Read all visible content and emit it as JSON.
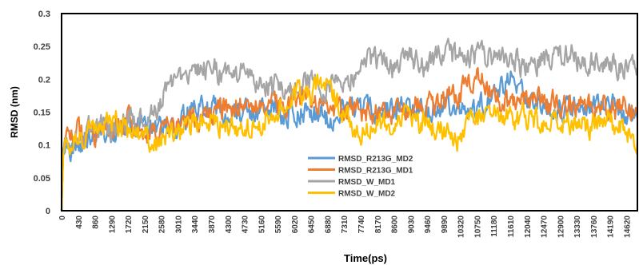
{
  "chart_data": {
    "type": "line",
    "xlabel": "Time(ps)",
    "ylabel": "RMSD (nm)",
    "ylim": [
      0,
      0.3
    ],
    "yticks": [
      "0",
      "0.05",
      "0.1",
      "0.15",
      "0.2",
      "0.25",
      "0.3"
    ],
    "xticks": [
      "0",
      "430",
      "860",
      "1290",
      "1720",
      "2150",
      "2580",
      "3010",
      "3440",
      "3870",
      "4300",
      "4730",
      "5160",
      "5590",
      "6020",
      "6450",
      "6880",
      "7310",
      "7740",
      "8170",
      "8600",
      "9030",
      "9460",
      "9890",
      "10320",
      "10750",
      "11180",
      "11610",
      "12040",
      "12470",
      "12900",
      "13330",
      "13760",
      "14190",
      "14620"
    ],
    "xlim": [
      0,
      14900
    ],
    "grid": false,
    "legend_position": "center-inside",
    "series": [
      {
        "name": "RMSD_R213G_MD2",
        "color": "#5b9bd5",
        "x": [
          0,
          50,
          200,
          430,
          860,
          1290,
          1720,
          2150,
          2580,
          3010,
          3440,
          3870,
          4300,
          4730,
          5160,
          5590,
          6020,
          6450,
          6880,
          7310,
          7740,
          8170,
          8600,
          9030,
          9460,
          9890,
          10320,
          10750,
          11180,
          11610,
          12040,
          12470,
          12900,
          13330,
          13760,
          14190,
          14620,
          14900
        ],
        "values": [
          0.0,
          0.1,
          0.09,
          0.1,
          0.12,
          0.12,
          0.13,
          0.12,
          0.12,
          0.13,
          0.16,
          0.15,
          0.15,
          0.15,
          0.15,
          0.15,
          0.15,
          0.15,
          0.14,
          0.15,
          0.16,
          0.15,
          0.15,
          0.16,
          0.15,
          0.16,
          0.15,
          0.16,
          0.17,
          0.2,
          0.17,
          0.16,
          0.16,
          0.16,
          0.16,
          0.16,
          0.15,
          0.15
        ]
      },
      {
        "name": "RMSD_R213G_MD1",
        "color": "#ed7d31",
        "x": [
          0,
          50,
          200,
          430,
          860,
          1290,
          1720,
          2150,
          2580,
          3010,
          3440,
          3870,
          4300,
          4730,
          5160,
          5590,
          6020,
          6450,
          6880,
          7310,
          7740,
          8170,
          8600,
          9030,
          9460,
          9890,
          10320,
          10750,
          11180,
          11610,
          12040,
          12470,
          12900,
          13330,
          13760,
          14190,
          14620,
          14900
        ],
        "values": [
          0.0,
          0.11,
          0.12,
          0.12,
          0.12,
          0.13,
          0.14,
          0.12,
          0.12,
          0.13,
          0.14,
          0.15,
          0.16,
          0.17,
          0.16,
          0.16,
          0.17,
          0.16,
          0.15,
          0.15,
          0.15,
          0.15,
          0.15,
          0.16,
          0.16,
          0.17,
          0.18,
          0.21,
          0.17,
          0.16,
          0.17,
          0.17,
          0.16,
          0.16,
          0.16,
          0.15,
          0.16,
          0.16
        ]
      },
      {
        "name": "RMSD_W_MD1",
        "color": "#a5a5a5",
        "x": [
          0,
          50,
          200,
          430,
          860,
          1290,
          1720,
          2150,
          2580,
          3010,
          3440,
          3870,
          4300,
          4730,
          5160,
          5590,
          6020,
          6450,
          6880,
          7310,
          7740,
          8170,
          8600,
          9030,
          9460,
          9890,
          10320,
          10750,
          11180,
          11610,
          12040,
          12470,
          12900,
          13330,
          13760,
          14190,
          14620,
          14900
        ],
        "values": [
          0.0,
          0.11,
          0.11,
          0.11,
          0.13,
          0.12,
          0.14,
          0.13,
          0.17,
          0.2,
          0.21,
          0.22,
          0.2,
          0.21,
          0.19,
          0.19,
          0.19,
          0.2,
          0.19,
          0.19,
          0.22,
          0.23,
          0.22,
          0.23,
          0.22,
          0.24,
          0.23,
          0.24,
          0.23,
          0.23,
          0.22,
          0.23,
          0.24,
          0.23,
          0.23,
          0.22,
          0.22,
          0.22
        ]
      },
      {
        "name": "RMSD_W_MD2",
        "color": "#ffc000",
        "x": [
          0,
          50,
          200,
          430,
          860,
          1290,
          1720,
          2150,
          2580,
          3010,
          3440,
          3870,
          4300,
          4730,
          5160,
          5590,
          6020,
          6450,
          6880,
          7310,
          7740,
          8170,
          8600,
          9030,
          9460,
          9890,
          10320,
          10750,
          11180,
          11610,
          12040,
          12470,
          12900,
          13330,
          13760,
          14190,
          14620,
          14900
        ],
        "values": [
          0.0,
          0.1,
          0.1,
          0.11,
          0.12,
          0.14,
          0.12,
          0.11,
          0.1,
          0.12,
          0.13,
          0.14,
          0.13,
          0.12,
          0.14,
          0.16,
          0.17,
          0.18,
          0.2,
          0.14,
          0.12,
          0.13,
          0.13,
          0.14,
          0.13,
          0.12,
          0.11,
          0.14,
          0.15,
          0.14,
          0.14,
          0.13,
          0.14,
          0.13,
          0.13,
          0.14,
          0.12,
          0.11
        ]
      }
    ]
  }
}
